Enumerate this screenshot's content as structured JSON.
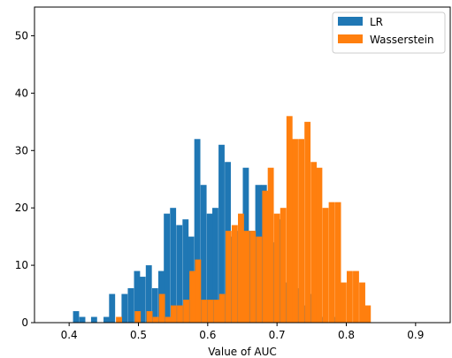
{
  "chart_data": {
    "type": "bar",
    "title": "",
    "xlabel": "Value of AUC",
    "ylabel": "",
    "xlim": [
      0.35,
      0.95
    ],
    "ylim": [
      0,
      55
    ],
    "xticks": [
      "0.4",
      "0.5",
      "0.6",
      "0.7",
      "0.8",
      "0.9"
    ],
    "yticks": [
      "0",
      "10",
      "20",
      "30",
      "40",
      "50"
    ],
    "grid": false,
    "legend": "top-right",
    "bin_width": 0.00875,
    "series": [
      {
        "name": "LR",
        "color": "#1f77b4",
        "x": [
          0.41,
          0.419,
          0.436,
          0.454,
          0.462,
          0.48,
          0.489,
          0.498,
          0.506,
          0.515,
          0.524,
          0.533,
          0.541,
          0.55,
          0.559,
          0.568,
          0.576,
          0.585,
          0.594,
          0.603,
          0.611,
          0.62,
          0.629,
          0.638,
          0.646,
          0.655,
          0.664,
          0.673,
          0.681,
          0.69,
          0.699,
          0.708,
          0.716,
          0.725,
          0.734,
          0.743,
          0.751,
          0.76,
          0.769,
          0.786
        ],
        "values": [
          2,
          1,
          1,
          1,
          5,
          5,
          6,
          9,
          8,
          10,
          6,
          9,
          19,
          20,
          17,
          18,
          15,
          32,
          24,
          19,
          20,
          31,
          28,
          15,
          16,
          27,
          16,
          24,
          24,
          22,
          14,
          18,
          7,
          21,
          6,
          3,
          5,
          4,
          1,
          1
        ],
        "data_labels": []
      },
      {
        "name": "Wasserstein",
        "color": "#ff7f0e",
        "x": [
          0.472,
          0.499,
          0.516,
          0.525,
          0.534,
          0.543,
          0.551,
          0.56,
          0.569,
          0.578,
          0.586,
          0.595,
          0.604,
          0.613,
          0.621,
          0.63,
          0.639,
          0.648,
          0.656,
          0.665,
          0.674,
          0.683,
          0.691,
          0.7,
          0.709,
          0.718,
          0.726,
          0.735,
          0.744,
          0.753,
          0.761,
          0.77,
          0.779,
          0.788,
          0.796,
          0.805,
          0.814,
          0.823,
          0.831
        ],
        "values": [
          1,
          2,
          2,
          1,
          5,
          1,
          3,
          3,
          4,
          9,
          11,
          4,
          4,
          4,
          5,
          16,
          17,
          19,
          16,
          16,
          15,
          23,
          27,
          19,
          20,
          36,
          32,
          32,
          35,
          28,
          27,
          20,
          21,
          21,
          7,
          9,
          9,
          7,
          3
        ],
        "data_labels": []
      }
    ]
  }
}
